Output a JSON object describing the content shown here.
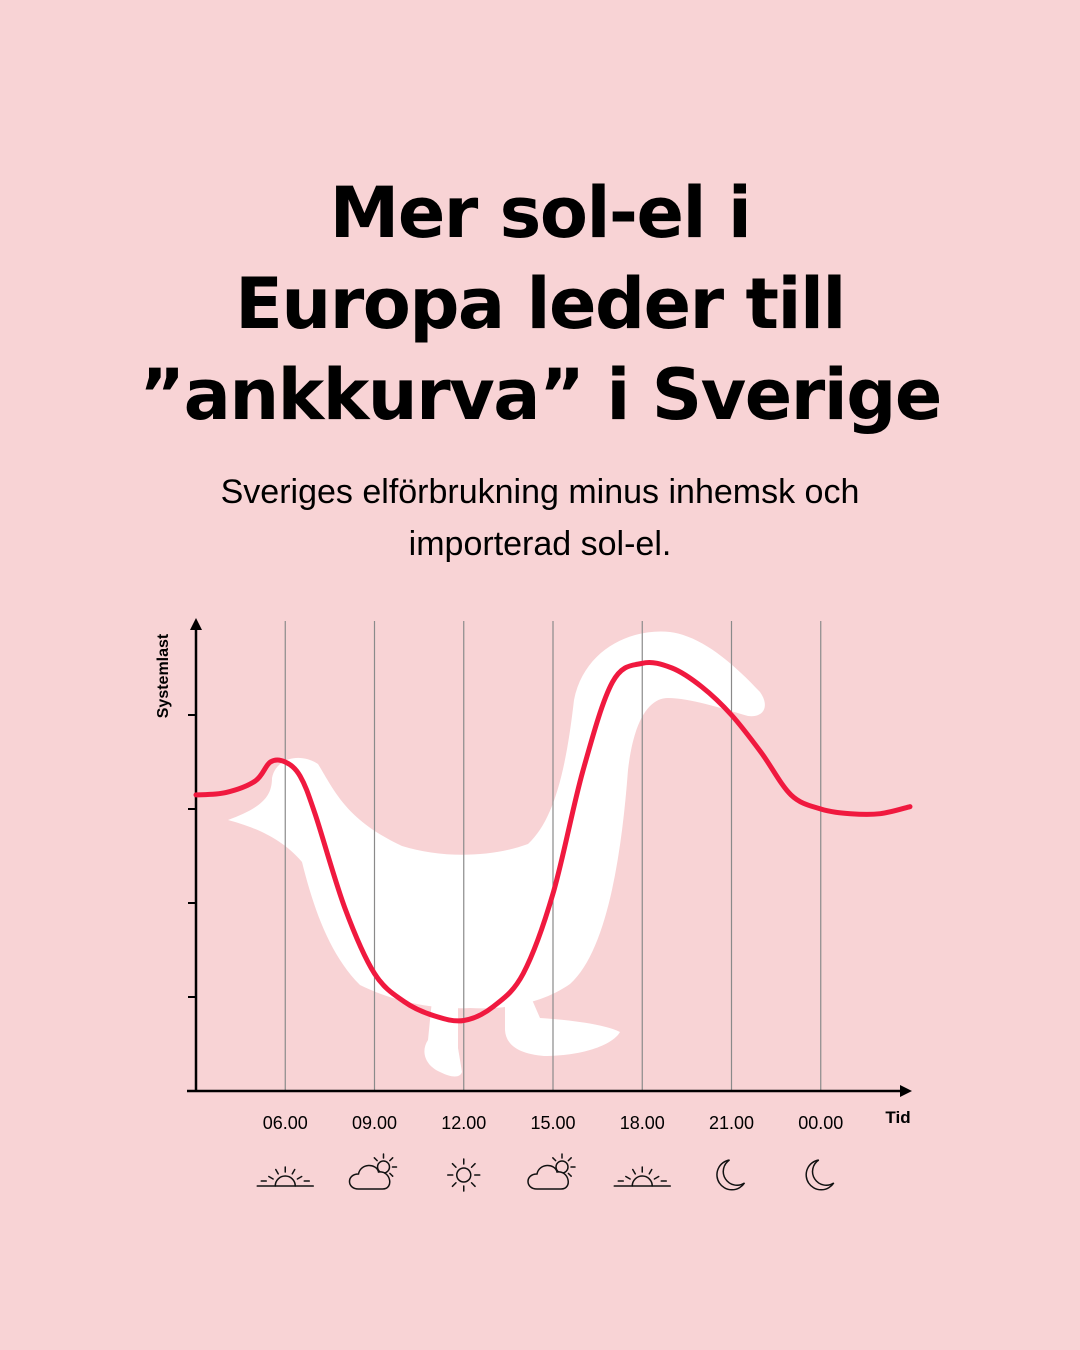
{
  "page": {
    "title_lines": [
      "Mer sol-el i",
      "Europa leder till",
      "”ankkurva” i Sverige"
    ],
    "subtitle_lines": [
      "Sveriges elförbrukning minus inhemsk och",
      "importerad sol-el."
    ],
    "background_color": "#f8d3d5",
    "line_color": "#f0193f",
    "duck_color": "#ffffff"
  },
  "chart_data": {
    "type": "line",
    "title": "Mer sol-el i Europa leder till ”ankkurva” i Sverige",
    "subtitle": "Sveriges elförbrukning minus inhemsk och importerad sol-el.",
    "xlabel": "Tid",
    "ylabel": "Systemlast",
    "x_ticks": [
      "06.00",
      "09.00",
      "12.00",
      "15.00",
      "18.00",
      "21.00",
      "00.00"
    ],
    "x_tick_icons": [
      "sunrise-icon",
      "partly-cloudy-icon",
      "sun-icon",
      "partly-cloudy-icon",
      "sunset-icon",
      "moon-icon",
      "moon-icon"
    ],
    "y_ticks_labeled": false,
    "xlim": [
      3,
      27
    ],
    "ylim": [
      0,
      10
    ],
    "grid": "vertical",
    "background_shape": "duck",
    "series": [
      {
        "x": [
          3,
          4,
          5,
          5.5,
          6,
          6.5,
          7,
          8,
          9,
          10,
          11,
          12,
          13,
          14,
          15,
          16,
          17,
          18,
          19,
          20,
          21,
          22,
          23,
          24,
          25,
          26,
          27
        ],
        "y": [
          6.3,
          6.35,
          6.6,
          7.0,
          7.0,
          6.7,
          5.9,
          3.9,
          2.5,
          1.9,
          1.6,
          1.5,
          1.8,
          2.5,
          4.2,
          6.8,
          8.7,
          9.1,
          9.0,
          8.6,
          8.0,
          7.2,
          6.3,
          6.0,
          5.9,
          5.9,
          6.05
        ]
      }
    ]
  }
}
